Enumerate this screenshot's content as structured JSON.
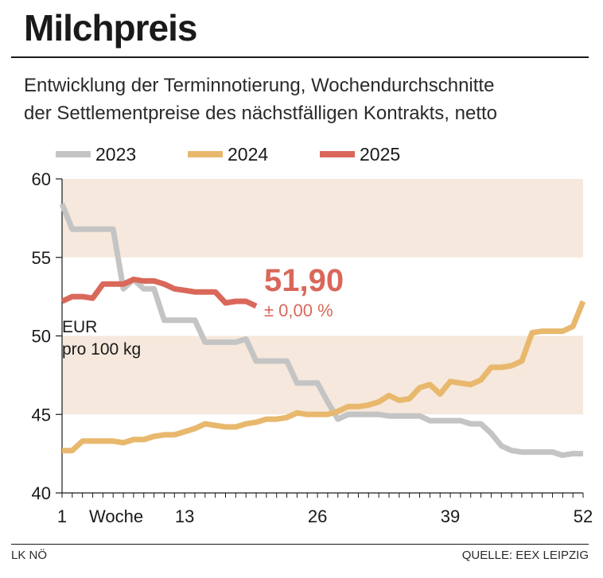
{
  "header": {
    "title": "Milchpreis",
    "subtitle_line1": "Entwicklung der Terminnotierung, Wochendurchschnitte",
    "subtitle_line2": "der Settlementpreise des nächstfälligen Kontrakts, netto"
  },
  "footer": {
    "left": "LK NÖ",
    "right": "QUELLE: EEX LEIPZIG"
  },
  "annotation": {
    "value": "51,90",
    "change": "± 0,00 %"
  },
  "chart_data": {
    "type": "line",
    "ylabel_line1": "EUR",
    "ylabel_line2": "pro 100 kg",
    "xlabel": "Woche",
    "xlim": [
      1,
      52
    ],
    "ylim": [
      40,
      60
    ],
    "y_ticks": [
      "60",
      "55",
      "50",
      "45",
      "40"
    ],
    "x_ticks": [
      {
        "value": 1,
        "label": "1"
      },
      {
        "value": 13,
        "label": "13"
      },
      {
        "value": 26,
        "label": "26"
      },
      {
        "value": 39,
        "label": "39"
      },
      {
        "value": 52,
        "label": "52"
      }
    ],
    "bands": [
      [
        55,
        60
      ],
      [
        45,
        50
      ]
    ],
    "colors": {
      "band": "#f6e8dc",
      "2023": "#c4c4c4",
      "2024": "#e8b86d",
      "2025": "#d9685a"
    },
    "series": [
      {
        "name": "2023",
        "x": [
          1,
          2,
          3,
          4,
          5,
          6,
          7,
          8,
          9,
          10,
          11,
          12,
          13,
          14,
          15,
          16,
          17,
          18,
          19,
          20,
          21,
          22,
          23,
          24,
          25,
          26,
          27,
          28,
          29,
          30,
          31,
          32,
          33,
          34,
          35,
          36,
          37,
          38,
          39,
          40,
          41,
          42,
          43,
          44,
          45,
          46,
          47,
          48,
          49,
          50,
          51,
          52
        ],
        "values": [
          58.4,
          56.8,
          56.8,
          56.8,
          56.8,
          56.8,
          53.0,
          53.6,
          53.0,
          53.0,
          51.0,
          51.0,
          51.0,
          51.0,
          49.6,
          49.6,
          49.6,
          49.6,
          49.8,
          48.4,
          48.4,
          48.4,
          48.4,
          47.0,
          47.0,
          47.0,
          45.8,
          44.7,
          45.0,
          45.0,
          45.0,
          45.0,
          44.9,
          44.9,
          44.9,
          44.9,
          44.6,
          44.6,
          44.6,
          44.6,
          44.4,
          44.4,
          43.8,
          43.0,
          42.7,
          42.6,
          42.6,
          42.6,
          42.6,
          42.4,
          42.5,
          42.5
        ]
      },
      {
        "name": "2024",
        "x": [
          1,
          2,
          3,
          4,
          5,
          6,
          7,
          8,
          9,
          10,
          11,
          12,
          13,
          14,
          15,
          16,
          17,
          18,
          19,
          20,
          21,
          22,
          23,
          24,
          25,
          26,
          27,
          28,
          29,
          30,
          31,
          32,
          33,
          34,
          35,
          36,
          37,
          38,
          39,
          40,
          41,
          42,
          43,
          44,
          45,
          46,
          47,
          48,
          49,
          50,
          51,
          52
        ],
        "values": [
          42.7,
          42.7,
          43.3,
          43.3,
          43.3,
          43.3,
          43.2,
          43.4,
          43.4,
          43.6,
          43.7,
          43.7,
          43.9,
          44.1,
          44.4,
          44.3,
          44.2,
          44.2,
          44.4,
          44.5,
          44.7,
          44.7,
          44.8,
          45.1,
          45.0,
          45.0,
          45.0,
          45.2,
          45.5,
          45.5,
          45.6,
          45.8,
          46.2,
          45.9,
          46.0,
          46.7,
          46.9,
          46.3,
          47.1,
          47.0,
          46.9,
          47.2,
          48.0,
          48.0,
          48.1,
          48.4,
          50.2,
          50.3,
          50.3,
          50.3,
          50.6,
          52.2
        ]
      },
      {
        "name": "2025",
        "x": [
          1,
          2,
          3,
          4,
          5,
          6,
          7,
          8,
          9,
          10,
          11,
          12,
          13,
          14,
          15,
          16,
          17,
          18,
          19,
          20
        ],
        "values": [
          52.2,
          52.5,
          52.5,
          52.4,
          53.3,
          53.3,
          53.3,
          53.6,
          53.5,
          53.5,
          53.3,
          53.0,
          52.9,
          52.8,
          52.8,
          52.8,
          52.1,
          52.2,
          52.2,
          51.9
        ]
      }
    ]
  }
}
